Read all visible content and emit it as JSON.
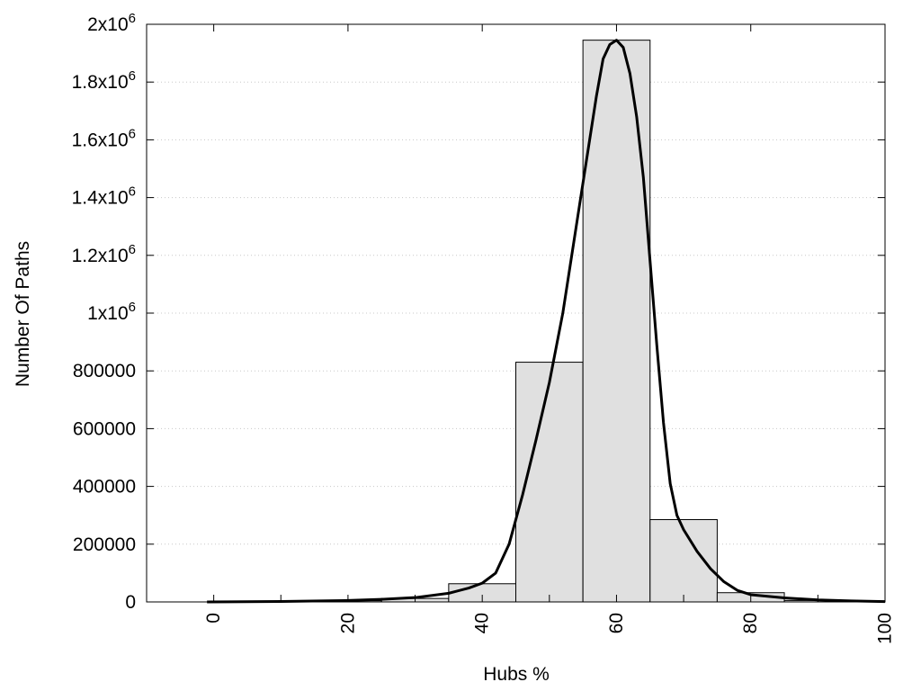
{
  "chart_data": {
    "type": "bar",
    "xlabel": "Hubs %",
    "ylabel": "Number Of Paths",
    "xlim": [
      -10,
      100
    ],
    "ylim": [
      0,
      2000000
    ],
    "x_ticks": [
      0,
      20,
      40,
      60,
      80,
      100
    ],
    "y_ticks": [
      {
        "value": 0,
        "label": "0"
      },
      {
        "value": 200000,
        "label": "200000"
      },
      {
        "value": 400000,
        "label": "400000"
      },
      {
        "value": 600000,
        "label": "600000"
      },
      {
        "value": 800000,
        "label": "800000"
      },
      {
        "value": 1000000,
        "label": "1x10",
        "exp": "6"
      },
      {
        "value": 1200000,
        "label": "1.2x10",
        "exp": "6"
      },
      {
        "value": 1400000,
        "label": "1.4x10",
        "exp": "6"
      },
      {
        "value": 1600000,
        "label": "1.6x10",
        "exp": "6"
      },
      {
        "value": 1800000,
        "label": "1.8x10",
        "exp": "6"
      },
      {
        "value": 2000000,
        "label": "2x10",
        "exp": "6"
      }
    ],
    "grid": true,
    "bar_fill": "#e0e0e0",
    "bars": [
      {
        "center": 0,
        "value": 0
      },
      {
        "center": 10,
        "value": 1500
      },
      {
        "center": 20,
        "value": 4000
      },
      {
        "center": 30,
        "value": 12000
      },
      {
        "center": 40,
        "value": 63000
      },
      {
        "center": 50,
        "value": 830000
      },
      {
        "center": 60,
        "value": 1945000
      },
      {
        "center": 70,
        "value": 285000
      },
      {
        "center": 80,
        "value": 32000
      },
      {
        "center": 90,
        "value": 5000
      }
    ],
    "bar_width": 10,
    "curve": {
      "x": [
        -1,
        10,
        20,
        25,
        30,
        35,
        38,
        40,
        42,
        44,
        46,
        48,
        50,
        52,
        54,
        56,
        57,
        58,
        59,
        60,
        61,
        62,
        63,
        64,
        65,
        66,
        67,
        68,
        69,
        70,
        72,
        74,
        76,
        78,
        80,
        85,
        90,
        95,
        100
      ],
      "y": [
        0,
        1500,
        5000,
        9000,
        15000,
        30000,
        48000,
        65000,
        100000,
        200000,
        370000,
        560000,
        760000,
        1000000,
        1300000,
        1600000,
        1750000,
        1880000,
        1930000,
        1945000,
        1920000,
        1830000,
        1680000,
        1470000,
        1180000,
        890000,
        620000,
        410000,
        300000,
        250000,
        175000,
        115000,
        70000,
        40000,
        25000,
        14000,
        7000,
        3500,
        1000
      ]
    }
  }
}
